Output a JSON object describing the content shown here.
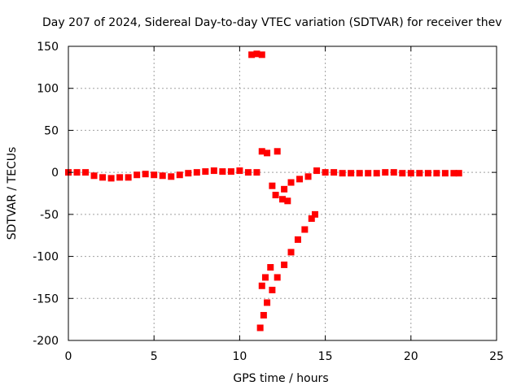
{
  "chart_data": {
    "type": "scatter",
    "title": "Day 207 of 2024, Sidereal Day-to-day VTEC variation (SDTVAR) for receiver thev",
    "xlabel": "GPS time / hours",
    "ylabel": "SDTVAR / TECUs",
    "xlim": [
      0,
      25
    ],
    "ylim": [
      -200,
      150
    ],
    "xticks": [
      "0",
      "5",
      "10",
      "15",
      "20",
      "25"
    ],
    "yticks": [
      "150",
      "100",
      "50",
      "0",
      "-50",
      "-100",
      "-150",
      "-200"
    ],
    "grid": true,
    "color": "#ff0000",
    "series": [
      {
        "points": [
          [
            0.0,
            0
          ],
          [
            0.5,
            0
          ],
          [
            1.0,
            0
          ],
          [
            1.5,
            -4
          ],
          [
            2.0,
            -6
          ],
          [
            2.5,
            -7
          ],
          [
            3.0,
            -6
          ],
          [
            3.5,
            -6
          ],
          [
            4.0,
            -3
          ],
          [
            4.5,
            -2
          ],
          [
            5.0,
            -3
          ],
          [
            5.5,
            -4
          ],
          [
            6.0,
            -5
          ],
          [
            6.5,
            -3
          ],
          [
            7.0,
            -1
          ],
          [
            7.5,
            0
          ],
          [
            8.0,
            1
          ],
          [
            8.5,
            2
          ],
          [
            9.0,
            1
          ],
          [
            9.5,
            1
          ],
          [
            10.0,
            2
          ],
          [
            10.5,
            0
          ],
          [
            11.0,
            0
          ],
          [
            10.7,
            140
          ],
          [
            11.0,
            141
          ],
          [
            11.3,
            140
          ],
          [
            11.3,
            25
          ],
          [
            11.6,
            23
          ],
          [
            12.2,
            25
          ],
          [
            11.9,
            -16
          ],
          [
            12.1,
            -27
          ],
          [
            12.5,
            -32
          ],
          [
            12.8,
            -34
          ],
          [
            12.6,
            -20
          ],
          [
            13.0,
            -12
          ],
          [
            13.5,
            -8
          ],
          [
            14.0,
            -5
          ],
          [
            14.5,
            2
          ],
          [
            15.0,
            0
          ],
          [
            15.5,
            0
          ],
          [
            16.0,
            -1
          ],
          [
            16.5,
            -1
          ],
          [
            17.0,
            -1
          ],
          [
            17.5,
            -1
          ],
          [
            18.0,
            -1
          ],
          [
            18.5,
            0
          ],
          [
            19.0,
            0
          ],
          [
            19.5,
            -1
          ],
          [
            20.0,
            -1
          ],
          [
            20.5,
            -1
          ],
          [
            21.0,
            -1
          ],
          [
            21.5,
            -1
          ],
          [
            22.0,
            -1
          ],
          [
            22.5,
            -1
          ],
          [
            22.8,
            -1
          ],
          [
            11.3,
            -135
          ],
          [
            11.5,
            -125
          ],
          [
            11.8,
            -113
          ],
          [
            11.2,
            -185
          ],
          [
            11.4,
            -170
          ],
          [
            11.6,
            -155
          ],
          [
            11.9,
            -140
          ],
          [
            12.2,
            -125
          ],
          [
            12.6,
            -110
          ],
          [
            13.0,
            -95
          ],
          [
            13.4,
            -80
          ],
          [
            13.8,
            -68
          ],
          [
            14.2,
            -55
          ],
          [
            14.4,
            -50
          ]
        ]
      }
    ]
  }
}
